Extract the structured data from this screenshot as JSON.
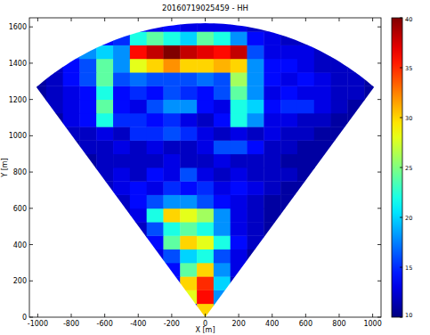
{
  "chart_data": {
    "type": "heatmap",
    "title": "20160719025459 - HH",
    "x_label": "X [m]",
    "y_label": "Y [m]",
    "xlim": [
      -1050,
      1050
    ],
    "ylim": [
      0,
      1650
    ],
    "xticks": [
      -1000,
      -800,
      -600,
      -400,
      -200,
      0,
      200,
      400,
      600,
      800,
      1000
    ],
    "yticks": [
      0,
      200,
      400,
      600,
      800,
      1000,
      1200,
      1400,
      1600
    ],
    "sector": {
      "range": 1620,
      "half_angle": 38.5
    },
    "colorbar": {
      "range": [
        10,
        40
      ],
      "ticks": [
        10,
        15,
        20,
        25,
        30,
        35,
        40
      ]
    },
    "heatmap": {
      "cells": [
        [
          11,
          11,
          11,
          11,
          11,
          11,
          11,
          11,
          11,
          14,
          30,
          20,
          11,
          11,
          11,
          11,
          11,
          11,
          11,
          11,
          11
        ],
        [
          11,
          11,
          11,
          11,
          11,
          11,
          11,
          11,
          12,
          28,
          36,
          18,
          12,
          11,
          11,
          11,
          11,
          11,
          11,
          11,
          11
        ],
        [
          11,
          11,
          11,
          11,
          11,
          11,
          11,
          11,
          14,
          30,
          35,
          20,
          12,
          11,
          11,
          11,
          11,
          11,
          11,
          11,
          11
        ],
        [
          11,
          11,
          11,
          11,
          11,
          11,
          11,
          12,
          14,
          24,
          30,
          18,
          13,
          11,
          11,
          11,
          11,
          11,
          11,
          11,
          11
        ],
        [
          11,
          11,
          11,
          11,
          11,
          11,
          11,
          13,
          16,
          20,
          22,
          16,
          13,
          11,
          11,
          11,
          11,
          11,
          11,
          11,
          11
        ],
        [
          11,
          11,
          11,
          11,
          11,
          11,
          12,
          14,
          24,
          30,
          28,
          22,
          14,
          12,
          11,
          11,
          11,
          11,
          11,
          11,
          11
        ],
        [
          11,
          11,
          11,
          11,
          11,
          11,
          12,
          16,
          22,
          24,
          22,
          18,
          13,
          12,
          11,
          11,
          11,
          11,
          11,
          11,
          11
        ],
        [
          11,
          11,
          11,
          11,
          11,
          12,
          13,
          22,
          30,
          28,
          26,
          18,
          13,
          12,
          11,
          11,
          11,
          11,
          11,
          11,
          11
        ],
        [
          11,
          11,
          11,
          11,
          11,
          12,
          14,
          16,
          18,
          18,
          16,
          14,
          13,
          12,
          11,
          11,
          11,
          11,
          11,
          11,
          11
        ],
        [
          11,
          11,
          11,
          11,
          12,
          13,
          14,
          13,
          15,
          14,
          15,
          13,
          14,
          13,
          12,
          11,
          11,
          11,
          11,
          11,
          11
        ],
        [
          11,
          11,
          11,
          12,
          12,
          13,
          12,
          14,
          13,
          16,
          13,
          12,
          13,
          12,
          12,
          12,
          11,
          11,
          11,
          11,
          11
        ],
        [
          11,
          11,
          11,
          11,
          12,
          12,
          12,
          12,
          13,
          12,
          12,
          13,
          12,
          12,
          12,
          11,
          11,
          11,
          11,
          11,
          11
        ],
        [
          11,
          11,
          11,
          12,
          12,
          13,
          12,
          13,
          12,
          12,
          13,
          16,
          16,
          14,
          12,
          12,
          11,
          11,
          11,
          11,
          11
        ],
        [
          11,
          11,
          12,
          12,
          13,
          12,
          15,
          15,
          16,
          15,
          13,
          12,
          13,
          12,
          13,
          12,
          12,
          11,
          11,
          11,
          11
        ],
        [
          11,
          11,
          13,
          14,
          22,
          15,
          15,
          14,
          15,
          13,
          12,
          14,
          22,
          18,
          13,
          13,
          12,
          12,
          11,
          11,
          11
        ],
        [
          11,
          12,
          13,
          14,
          24,
          14,
          13,
          16,
          18,
          18,
          14,
          13,
          22,
          20,
          14,
          15,
          15,
          13,
          12,
          11,
          11
        ],
        [
          11,
          12,
          13,
          14,
          22,
          14,
          15,
          14,
          16,
          15,
          14,
          16,
          24,
          18,
          13,
          14,
          13,
          13,
          12,
          12,
          11
        ],
        [
          11,
          12,
          14,
          16,
          24,
          16,
          17,
          16,
          16,
          16,
          17,
          16,
          26,
          18,
          14,
          13,
          14,
          13,
          12,
          12,
          11
        ],
        [
          11,
          12,
          14,
          16,
          24,
          18,
          28,
          30,
          32,
          30,
          30,
          31,
          30,
          18,
          14,
          14,
          13,
          12,
          12,
          12,
          11
        ],
        [
          11,
          12,
          16,
          18,
          20,
          18,
          36,
          38,
          40,
          38,
          37,
          36,
          38,
          16,
          13,
          13,
          13,
          12,
          12,
          12,
          11
        ],
        [
          11,
          11,
          13,
          14,
          14,
          15,
          22,
          24,
          22,
          20,
          24,
          22,
          18,
          14,
          13,
          12,
          12,
          12,
          11,
          11,
          11
        ],
        [
          11,
          11,
          12,
          12,
          12,
          13,
          14,
          13,
          14,
          13,
          13,
          13,
          13,
          12,
          12,
          12,
          11,
          11,
          11,
          11,
          11
        ]
      ]
    }
  }
}
